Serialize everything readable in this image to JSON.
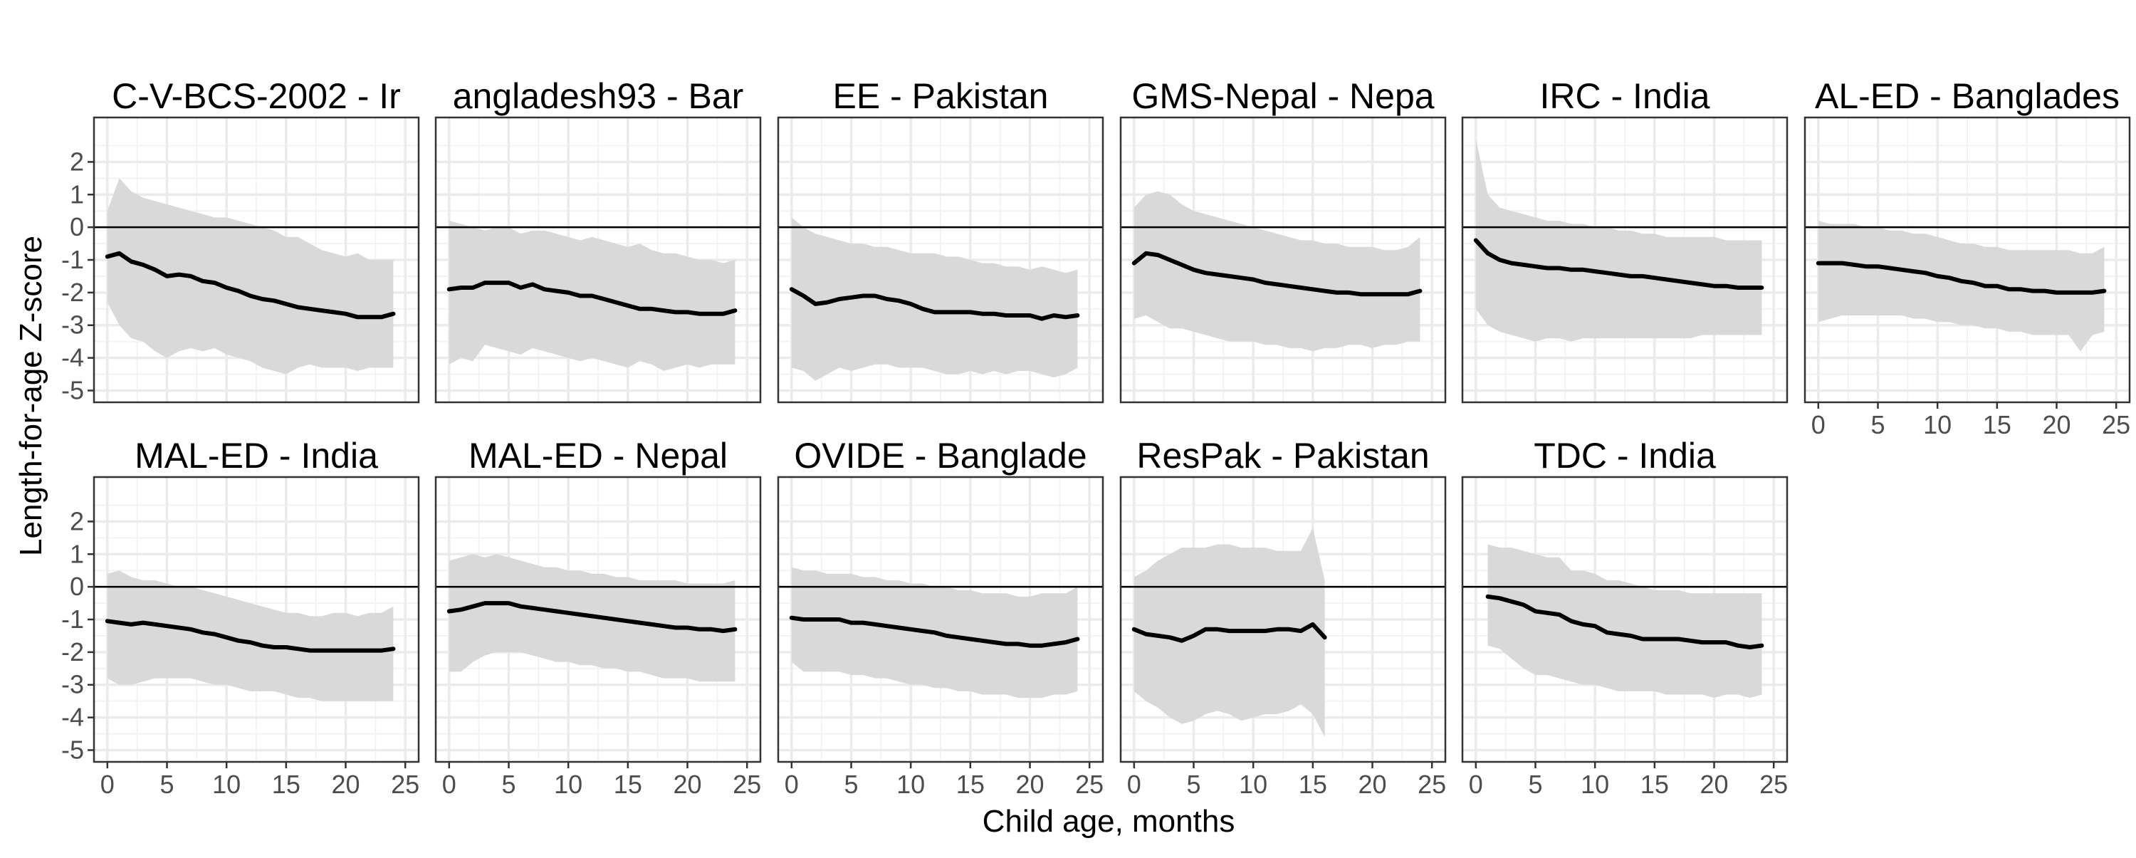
{
  "chart_data": {
    "type": "line",
    "x_label": "Child age, months",
    "y_label": "Length-for-age Z-score",
    "xlim": [
      0,
      25
    ],
    "ylim": [
      -5,
      3
    ],
    "x_ticks": [
      0,
      5,
      10,
      15,
      20,
      25
    ],
    "y_ticks": [
      -5,
      -4,
      -3,
      -2,
      -1,
      0,
      1,
      2
    ],
    "reference_line": 0,
    "colors": {
      "line": "#000000",
      "ribbon": "#d9d9d9",
      "panel_border": "#333333",
      "grid_major": "#ebebeb",
      "grid_minor": "#f3f3f3"
    },
    "panels": [
      {
        "title": "C-V-BCS-2002 - Ir",
        "x": [
          0,
          1,
          2,
          3,
          4,
          5,
          6,
          7,
          8,
          9,
          10,
          11,
          12,
          13,
          14,
          15,
          16,
          17,
          18,
          19,
          20,
          21,
          22,
          23,
          24
        ],
        "mean": [
          -0.9,
          -0.8,
          -1.05,
          -1.15,
          -1.3,
          -1.5,
          -1.45,
          -1.5,
          -1.65,
          -1.7,
          -1.85,
          -1.95,
          -2.1,
          -2.2,
          -2.25,
          -2.35,
          -2.45,
          -2.5,
          -2.55,
          -2.6,
          -2.65,
          -2.75,
          -2.75,
          -2.75,
          -2.65
        ],
        "upper": [
          0.5,
          1.5,
          1.1,
          0.9,
          0.8,
          0.7,
          0.6,
          0.5,
          0.4,
          0.3,
          0.3,
          0.2,
          0.1,
          0,
          -0.1,
          -0.3,
          -0.3,
          -0.5,
          -0.7,
          -0.8,
          -0.9,
          -0.8,
          -1,
          -1,
          -1
        ],
        "lower": [
          -2.3,
          -3,
          -3.4,
          -3.5,
          -3.8,
          -4,
          -3.8,
          -3.7,
          -3.8,
          -3.7,
          -3.9,
          -4,
          -4.1,
          -4.3,
          -4.4,
          -4.5,
          -4.3,
          -4.2,
          -4.3,
          -4.3,
          -4.3,
          -4.4,
          -4.3,
          -4.3,
          -4.3
        ]
      },
      {
        "title": "angladesh93 - Bar",
        "x": [
          0,
          1,
          2,
          3,
          4,
          5,
          6,
          7,
          8,
          9,
          10,
          11,
          12,
          13,
          14,
          15,
          16,
          17,
          18,
          19,
          20,
          21,
          22,
          23,
          24
        ],
        "mean": [
          -1.9,
          -1.85,
          -1.85,
          -1.7,
          -1.7,
          -1.7,
          -1.85,
          -1.75,
          -1.9,
          -1.95,
          -2,
          -2.1,
          -2.1,
          -2.2,
          -2.3,
          -2.4,
          -2.5,
          -2.5,
          -2.55,
          -2.6,
          -2.6,
          -2.65,
          -2.65,
          -2.65,
          -2.55
        ],
        "upper": [
          0.2,
          0.1,
          0,
          -0.1,
          0,
          0,
          -0.2,
          -0.1,
          -0.1,
          -0.2,
          -0.3,
          -0.4,
          -0.3,
          -0.4,
          -0.5,
          -0.6,
          -0.5,
          -0.7,
          -0.8,
          -0.8,
          -0.9,
          -1,
          -1,
          -1.1,
          -1
        ],
        "lower": [
          -4.2,
          -4,
          -4.1,
          -3.6,
          -3.7,
          -3.8,
          -3.9,
          -3.7,
          -3.8,
          -3.9,
          -4,
          -4.1,
          -4,
          -4.1,
          -4.2,
          -4.3,
          -4.1,
          -4.2,
          -4.4,
          -4.3,
          -4.2,
          -4.3,
          -4.2,
          -4.2,
          -4.2
        ]
      },
      {
        "title": "EE - Pakistan",
        "x": [
          0,
          1,
          2,
          3,
          4,
          5,
          6,
          7,
          8,
          9,
          10,
          11,
          12,
          13,
          14,
          15,
          16,
          17,
          18,
          19,
          20,
          21,
          22,
          23,
          24
        ],
        "mean": [
          -1.9,
          -2.1,
          -2.35,
          -2.3,
          -2.2,
          -2.15,
          -2.1,
          -2.1,
          -2.2,
          -2.25,
          -2.35,
          -2.5,
          -2.6,
          -2.6,
          -2.6,
          -2.6,
          -2.65,
          -2.65,
          -2.7,
          -2.7,
          -2.7,
          -2.8,
          -2.7,
          -2.75,
          -2.7
        ],
        "upper": [
          0.3,
          0,
          -0.2,
          -0.3,
          -0.4,
          -0.5,
          -0.5,
          -0.6,
          -0.6,
          -0.7,
          -0.8,
          -0.8,
          -0.8,
          -0.9,
          -0.9,
          -1,
          -1.1,
          -1.1,
          -1.2,
          -1.2,
          -1.3,
          -1.2,
          -1.3,
          -1.4,
          -1.3
        ],
        "lower": [
          -4.3,
          -4.4,
          -4.7,
          -4.5,
          -4.3,
          -4.4,
          -4.3,
          -4.2,
          -4.2,
          -4.3,
          -4.3,
          -4.3,
          -4.4,
          -4.5,
          -4.5,
          -4.4,
          -4.5,
          -4.4,
          -4.5,
          -4.4,
          -4.4,
          -4.5,
          -4.6,
          -4.5,
          -4.3
        ]
      },
      {
        "title": "GMS-Nepal - Nepa",
        "x": [
          0,
          1,
          2,
          3,
          4,
          5,
          6,
          7,
          8,
          9,
          10,
          11,
          12,
          13,
          14,
          15,
          16,
          17,
          18,
          19,
          20,
          21,
          22,
          23,
          24
        ],
        "mean": [
          -1.1,
          -0.8,
          -0.85,
          -1,
          -1.15,
          -1.3,
          -1.4,
          -1.45,
          -1.5,
          -1.55,
          -1.6,
          -1.7,
          -1.75,
          -1.8,
          -1.85,
          -1.9,
          -1.95,
          -2,
          -2,
          -2.05,
          -2.05,
          -2.05,
          -2.05,
          -2.05,
          -1.95
        ],
        "upper": [
          0.6,
          1,
          1.1,
          1,
          0.7,
          0.5,
          0.4,
          0.3,
          0.2,
          0.1,
          0,
          -0.1,
          -0.2,
          -0.3,
          -0.4,
          -0.4,
          -0.5,
          -0.5,
          -0.6,
          -0.6,
          -0.6,
          -0.7,
          -0.7,
          -0.6,
          -0.3
        ],
        "lower": [
          -2.8,
          -2.7,
          -2.9,
          -3.1,
          -3.1,
          -3.2,
          -3.3,
          -3.4,
          -3.5,
          -3.5,
          -3.5,
          -3.6,
          -3.6,
          -3.7,
          -3.7,
          -3.8,
          -3.7,
          -3.7,
          -3.6,
          -3.6,
          -3.7,
          -3.6,
          -3.6,
          -3.5,
          -3.5
        ]
      },
      {
        "title": "IRC - India",
        "x": [
          0,
          1,
          2,
          3,
          4,
          5,
          6,
          7,
          8,
          9,
          10,
          11,
          12,
          13,
          14,
          15,
          16,
          17,
          18,
          19,
          20,
          21,
          22,
          23,
          24
        ],
        "mean": [
          -0.4,
          -0.8,
          -1,
          -1.1,
          -1.15,
          -1.2,
          -1.25,
          -1.25,
          -1.3,
          -1.3,
          -1.35,
          -1.4,
          -1.45,
          -1.5,
          -1.5,
          -1.55,
          -1.6,
          -1.65,
          -1.7,
          -1.75,
          -1.8,
          -1.8,
          -1.85,
          -1.85,
          -1.85
        ],
        "upper": [
          2.7,
          1,
          0.6,
          0.5,
          0.4,
          0.3,
          0.2,
          0.2,
          0.1,
          0.1,
          0,
          0,
          -0.1,
          -0.1,
          -0.2,
          -0.2,
          -0.3,
          -0.3,
          -0.3,
          -0.3,
          -0.3,
          -0.4,
          -0.4,
          -0.4,
          -0.4
        ],
        "lower": [
          -2.5,
          -3,
          -3.2,
          -3.3,
          -3.4,
          -3.5,
          -3.4,
          -3.4,
          -3.5,
          -3.4,
          -3.4,
          -3.4,
          -3.4,
          -3.4,
          -3.4,
          -3.4,
          -3.4,
          -3.4,
          -3.4,
          -3.3,
          -3.3,
          -3.3,
          -3.3,
          -3.3,
          -3.3
        ]
      },
      {
        "title": "AL-ED - Banglades",
        "x": [
          0,
          1,
          2,
          3,
          4,
          5,
          6,
          7,
          8,
          9,
          10,
          11,
          12,
          13,
          14,
          15,
          16,
          17,
          18,
          19,
          20,
          21,
          22,
          23,
          24
        ],
        "mean": [
          -1.1,
          -1.1,
          -1.1,
          -1.15,
          -1.2,
          -1.2,
          -1.25,
          -1.3,
          -1.35,
          -1.4,
          -1.5,
          -1.55,
          -1.65,
          -1.7,
          -1.8,
          -1.8,
          -1.9,
          -1.9,
          -1.95,
          -1.95,
          -2,
          -2,
          -2,
          -2,
          -1.95
        ],
        "upper": [
          0.2,
          0.1,
          0.1,
          0.1,
          0,
          0,
          -0.1,
          -0.1,
          -0.2,
          -0.2,
          -0.3,
          -0.4,
          -0.5,
          -0.5,
          -0.6,
          -0.6,
          -0.7,
          -0.7,
          -0.7,
          -0.7,
          -0.7,
          -0.7,
          -0.8,
          -0.8,
          -0.6
        ],
        "lower": [
          -2.9,
          -2.8,
          -2.7,
          -2.7,
          -2.7,
          -2.7,
          -2.7,
          -2.7,
          -2.8,
          -2.8,
          -2.9,
          -2.9,
          -3,
          -3,
          -3.1,
          -3.1,
          -3.2,
          -3.2,
          -3.3,
          -3.3,
          -3.3,
          -3.3,
          -3.8,
          -3.3,
          -3.2
        ]
      },
      {
        "title": "MAL-ED - India",
        "x": [
          0,
          1,
          2,
          3,
          4,
          5,
          6,
          7,
          8,
          9,
          10,
          11,
          12,
          13,
          14,
          15,
          16,
          17,
          18,
          19,
          20,
          21,
          22,
          23,
          24
        ],
        "mean": [
          -1.05,
          -1.1,
          -1.15,
          -1.1,
          -1.15,
          -1.2,
          -1.25,
          -1.3,
          -1.4,
          -1.45,
          -1.55,
          -1.65,
          -1.7,
          -1.8,
          -1.85,
          -1.85,
          -1.9,
          -1.95,
          -1.95,
          -1.95,
          -1.95,
          -1.95,
          -1.95,
          -1.95,
          -1.9
        ],
        "upper": [
          0.4,
          0.5,
          0.3,
          0.2,
          0.2,
          0.1,
          0,
          0,
          -0.1,
          -0.2,
          -0.3,
          -0.4,
          -0.5,
          -0.6,
          -0.7,
          -0.8,
          -0.8,
          -0.9,
          -0.9,
          -0.8,
          -0.8,
          -0.9,
          -0.8,
          -0.8,
          -0.6
        ],
        "lower": [
          -2.8,
          -3,
          -3,
          -2.9,
          -2.8,
          -2.8,
          -2.8,
          -2.8,
          -2.9,
          -3,
          -3,
          -3.1,
          -3.2,
          -3.2,
          -3.2,
          -3.3,
          -3.4,
          -3.4,
          -3.5,
          -3.5,
          -3.5,
          -3.5,
          -3.5,
          -3.5,
          -3.5
        ]
      },
      {
        "title": "MAL-ED - Nepal",
        "x": [
          0,
          1,
          2,
          3,
          4,
          5,
          6,
          7,
          8,
          9,
          10,
          11,
          12,
          13,
          14,
          15,
          16,
          17,
          18,
          19,
          20,
          21,
          22,
          23,
          24
        ],
        "mean": [
          -0.75,
          -0.7,
          -0.6,
          -0.5,
          -0.5,
          -0.5,
          -0.6,
          -0.65,
          -0.7,
          -0.75,
          -0.8,
          -0.85,
          -0.9,
          -0.95,
          -1,
          -1.05,
          -1.1,
          -1.15,
          -1.2,
          -1.25,
          -1.25,
          -1.3,
          -1.3,
          -1.35,
          -1.3
        ],
        "upper": [
          0.8,
          0.9,
          1,
          0.9,
          1,
          0.9,
          0.8,
          0.7,
          0.6,
          0.6,
          0.5,
          0.5,
          0.4,
          0.4,
          0.3,
          0.3,
          0.2,
          0.2,
          0.2,
          0.2,
          0.1,
          0.1,
          0.1,
          0.1,
          0.2
        ],
        "lower": [
          -2.6,
          -2.6,
          -2.3,
          -2.1,
          -2,
          -2,
          -2,
          -2.1,
          -2.2,
          -2.3,
          -2.3,
          -2.4,
          -2.4,
          -2.5,
          -2.5,
          -2.6,
          -2.6,
          -2.7,
          -2.8,
          -2.8,
          -2.8,
          -2.9,
          -2.9,
          -2.9,
          -2.9
        ]
      },
      {
        "title": "OVIDE - Banglade",
        "x": [
          0,
          1,
          2,
          3,
          4,
          5,
          6,
          7,
          8,
          9,
          10,
          11,
          12,
          13,
          14,
          15,
          16,
          17,
          18,
          19,
          20,
          21,
          22,
          23,
          24
        ],
        "mean": [
          -0.95,
          -1,
          -1,
          -1,
          -1,
          -1.1,
          -1.1,
          -1.15,
          -1.2,
          -1.25,
          -1.3,
          -1.35,
          -1.4,
          -1.5,
          -1.55,
          -1.6,
          -1.65,
          -1.7,
          -1.75,
          -1.75,
          -1.8,
          -1.8,
          -1.75,
          -1.7,
          -1.6
        ],
        "upper": [
          0.6,
          0.5,
          0.5,
          0.4,
          0.4,
          0.4,
          0.3,
          0.3,
          0.2,
          0.2,
          0.1,
          0.1,
          0,
          0,
          -0.1,
          -0.1,
          -0.2,
          -0.2,
          -0.2,
          -0.3,
          -0.3,
          -0.2,
          -0.2,
          -0.2,
          0
        ],
        "lower": [
          -2.3,
          -2.6,
          -2.6,
          -2.6,
          -2.6,
          -2.7,
          -2.7,
          -2.8,
          -2.8,
          -2.9,
          -3,
          -3,
          -3.1,
          -3.1,
          -3.2,
          -3.2,
          -3.3,
          -3.3,
          -3.3,
          -3.4,
          -3.4,
          -3.4,
          -3.3,
          -3.3,
          -3.2
        ]
      },
      {
        "title": "ResPak - Pakistan",
        "x": [
          0,
          1,
          2,
          3,
          4,
          5,
          6,
          7,
          8,
          9,
          10,
          11,
          12,
          13,
          14,
          15,
          16
        ],
        "mean": [
          -1.3,
          -1.45,
          -1.5,
          -1.55,
          -1.65,
          -1.5,
          -1.3,
          -1.3,
          -1.35,
          -1.35,
          -1.35,
          -1.35,
          -1.3,
          -1.3,
          -1.35,
          -1.15,
          -1.55
        ],
        "upper": [
          0.3,
          0.5,
          0.8,
          1,
          1.2,
          1.2,
          1.2,
          1.3,
          1.3,
          1.2,
          1.2,
          1.2,
          1.1,
          1.1,
          1.1,
          1.8,
          0.2
        ],
        "lower": [
          -3.2,
          -3.5,
          -3.7,
          -4,
          -4.2,
          -4.1,
          -3.9,
          -3.8,
          -3.9,
          -4.1,
          -4,
          -3.9,
          -3.9,
          -3.8,
          -3.6,
          -3.9,
          -4.6
        ]
      },
      {
        "title": "TDC - India",
        "x": [
          1,
          2,
          3,
          4,
          5,
          6,
          7,
          8,
          9,
          10,
          11,
          12,
          13,
          14,
          15,
          16,
          17,
          18,
          19,
          20,
          21,
          22,
          23,
          24
        ],
        "mean": [
          -0.3,
          -0.35,
          -0.45,
          -0.55,
          -0.75,
          -0.8,
          -0.85,
          -1.05,
          -1.15,
          -1.2,
          -1.4,
          -1.45,
          -1.5,
          -1.6,
          -1.6,
          -1.6,
          -1.6,
          -1.65,
          -1.7,
          -1.7,
          -1.7,
          -1.8,
          -1.85,
          -1.8
        ],
        "upper": [
          1.3,
          1.2,
          1.2,
          1.1,
          1,
          0.9,
          0.9,
          0.5,
          0.5,
          0.4,
          0.2,
          0.2,
          0.1,
          0,
          -0.1,
          -0.1,
          -0.1,
          -0.2,
          -0.2,
          -0.2,
          -0.2,
          -0.2,
          -0.2,
          -0.2
        ],
        "lower": [
          -1.8,
          -1.9,
          -2.2,
          -2.5,
          -2.7,
          -2.7,
          -2.8,
          -2.9,
          -3,
          -3,
          -3.1,
          -3.2,
          -3.2,
          -3.2,
          -3.2,
          -3.3,
          -3.3,
          -3.3,
          -3.3,
          -3.4,
          -3.3,
          -3.3,
          -3.4,
          -3.3
        ]
      }
    ]
  }
}
